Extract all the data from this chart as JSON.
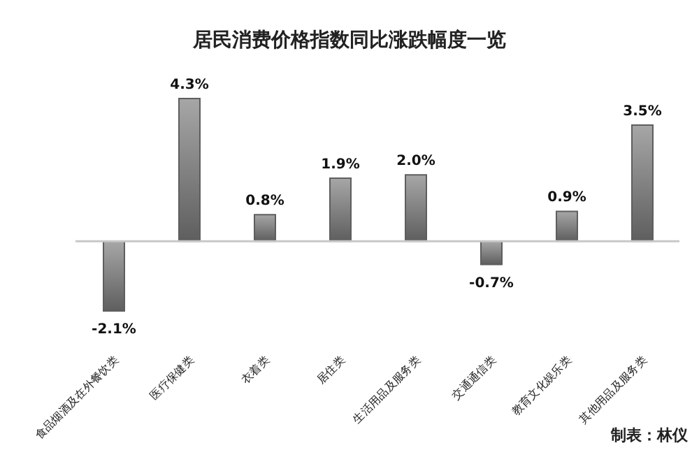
{
  "chart_data": {
    "type": "bar",
    "title": "居民消费价格指数同比涨跌幅度一览",
    "categories": [
      "食品烟酒及在外餐饮类",
      "医疗保健类",
      "衣着类",
      "居住类",
      "生活用品及服务类",
      "交通通信类",
      "教育文化娱乐类",
      "其他用品及服务类"
    ],
    "values": [
      -2.1,
      4.3,
      0.8,
      1.9,
      2.0,
      -0.7,
      0.9,
      3.5
    ],
    "value_labels": [
      "-2.1%",
      "4.3%",
      "0.8%",
      "1.9%",
      "2.0%",
      "-0.7%",
      "0.9%",
      "3.5%"
    ],
    "color": "#5e5e5e",
    "annotations": [
      "制表：林仪"
    ]
  }
}
